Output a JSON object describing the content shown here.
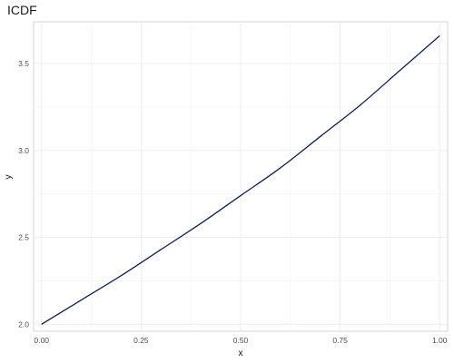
{
  "chart_data": {
    "type": "line",
    "title": "ICDF",
    "xlabel": "x",
    "ylabel": "y",
    "xlim": [
      -0.02,
      1.02
    ],
    "ylim": [
      1.96,
      3.74
    ],
    "x_ticks": [
      0.0,
      0.25,
      0.5,
      0.75,
      1.0
    ],
    "x_tick_labels": [
      "0.00",
      "0.25",
      "0.50",
      "0.75",
      "1.00"
    ],
    "x_minor_ticks": [
      0.125,
      0.375,
      0.625,
      0.875
    ],
    "y_ticks": [
      2.0,
      2.5,
      3.0,
      3.5
    ],
    "y_tick_labels": [
      "2.0",
      "2.5",
      "3.0",
      "3.5"
    ],
    "y_minor_ticks": [
      2.25,
      2.75,
      3.25
    ],
    "grid": true,
    "line_color": "#0d1f5c",
    "series": [
      {
        "x": [
          0.0,
          0.1,
          0.2,
          0.3,
          0.4,
          0.5,
          0.6,
          0.7,
          0.8,
          0.9,
          1.0
        ],
        "values": [
          2.0,
          2.14,
          2.28,
          2.43,
          2.58,
          2.74,
          2.9,
          3.08,
          3.26,
          3.46,
          3.66
        ]
      }
    ]
  }
}
